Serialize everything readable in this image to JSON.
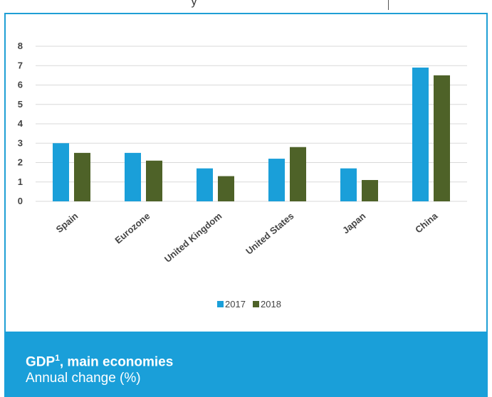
{
  "top_fragment_text": "y",
  "chart_data": {
    "type": "bar",
    "title": "GDP¹, main economies",
    "subtitle": "Annual change (%)",
    "categories": [
      "Spain",
      "Eurozone",
      "United Kingdom",
      "United States",
      "Japan",
      "China"
    ],
    "series": [
      {
        "name": "2017",
        "color": "#1a9fd9",
        "values": [
          3.0,
          2.5,
          1.7,
          2.2,
          1.7,
          6.9
        ]
      },
      {
        "name": "2018",
        "color": "#4e6228",
        "values": [
          2.5,
          2.1,
          1.3,
          2.8,
          1.1,
          6.5
        ]
      }
    ],
    "yticks": [
      "0",
      "1",
      "2",
      "3",
      "4",
      "5",
      "6",
      "7",
      "8"
    ],
    "ylim": [
      0,
      8
    ],
    "grid": true,
    "legend_position": "bottom"
  },
  "footer": {
    "title": "GDP",
    "title_sup": "1",
    "title_rest": ", main economies",
    "subtitle": "Annual change (%)"
  }
}
